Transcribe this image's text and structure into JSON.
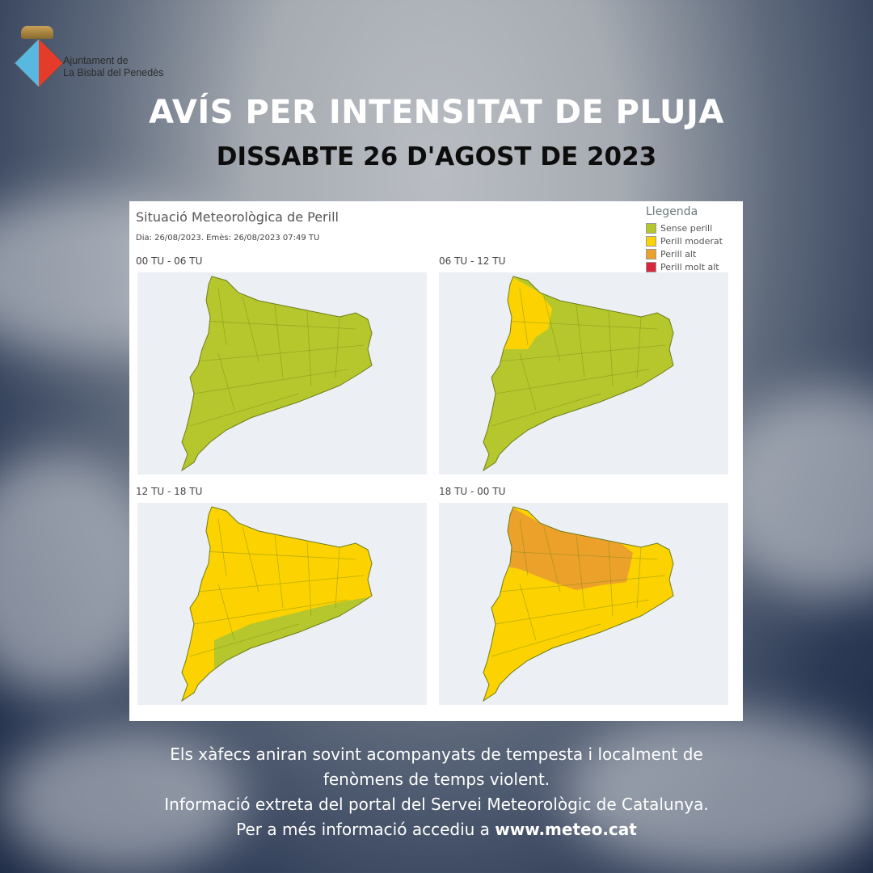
{
  "logo": {
    "line1": "Ajuntament de",
    "line2": "La Bisbal del Penedès"
  },
  "title": "AVÍS PER INTENSITAT DE PLUJA",
  "date": "DISSABTE 26 D'AGOST DE 2023",
  "card": {
    "title": "Situació Meteorològica de Perill",
    "subtitle": "Dia: 26/08/2023. Emès: 26/08/2023 07:49 TU",
    "legend": {
      "title": "Llegenda",
      "items": [
        {
          "label": "Sense perill",
          "color": "#b5c72c"
        },
        {
          "label": "Perill moderat",
          "color": "#fcd200"
        },
        {
          "label": "Perill alt",
          "color": "#eba12a"
        },
        {
          "label": "Perill molt alt",
          "color": "#d9263b"
        }
      ]
    },
    "panels": [
      {
        "label": "00 TU - 06 TU",
        "base": "Sense perill",
        "overlay": null
      },
      {
        "label": "06 TU - 12 TU",
        "base": "Sense perill",
        "overlay": "Perill moderat",
        "overlay_area": "north-west"
      },
      {
        "label": "12 TU - 18 TU",
        "base": "Perill moderat",
        "overlay": "Sense perill",
        "overlay_area": "coast"
      },
      {
        "label": "18 TU - 00 TU",
        "base": "Perill moderat",
        "overlay": "Perill alt",
        "overlay_area": "north"
      }
    ]
  },
  "footer": {
    "line1": "Els xàfecs aniran sovint acompanyats de tempesta i localment de",
    "line2": "fenòmens de temps violent.",
    "line3": "Informació extreta del portal del Servei Meteorològic de Catalunya.",
    "line4_prefix": "Per a més informació accediu a ",
    "link": "www.meteo.cat"
  }
}
